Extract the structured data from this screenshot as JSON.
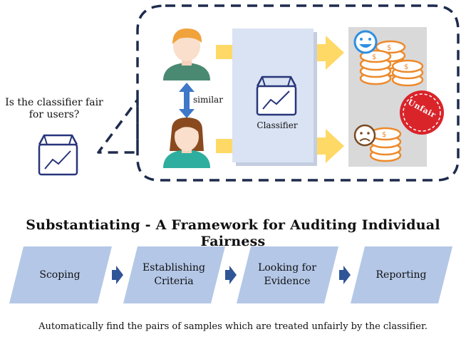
{
  "illustration": {
    "question_line1": "Is the classifier fair",
    "question_line2": "for users?",
    "similar_label": "similar",
    "classifier_label": "Classifier",
    "stamp_text": "Unfair"
  },
  "framework": {
    "title": "Substantiating - A Framework for Auditing Individual Fairness",
    "steps": [
      {
        "line1": "Scoping",
        "line2": ""
      },
      {
        "line1": "Establishing",
        "line2": "Criteria"
      },
      {
        "line1": "Looking for",
        "line2": "Evidence"
      },
      {
        "line1": "Reporting",
        "line2": ""
      }
    ],
    "caption": "Automatically find the pairs of samples which are treated unfairly by the classifier."
  },
  "colors": {
    "dashed_border": "#1e2b4d",
    "classifier_icon": "#27357a",
    "arrow_yellow": "#ffd966",
    "classifier_panel": "#dae3f3",
    "output_panel": "#d9d9d9",
    "coin": "#ed8a2c",
    "happy_face": "#2e8fe0",
    "sad_face": "#7a4a22",
    "stamp": "#d9242a",
    "updown_arrow": "#3f77c9",
    "step_fill": "#b4c7e7",
    "step_arrow": "#2f5597"
  },
  "icons": [
    "classifier-icon",
    "man-icon",
    "woman-icon",
    "happy-face-icon",
    "sad-face-icon",
    "coin-stack-icon",
    "unfair-stamp-icon"
  ]
}
